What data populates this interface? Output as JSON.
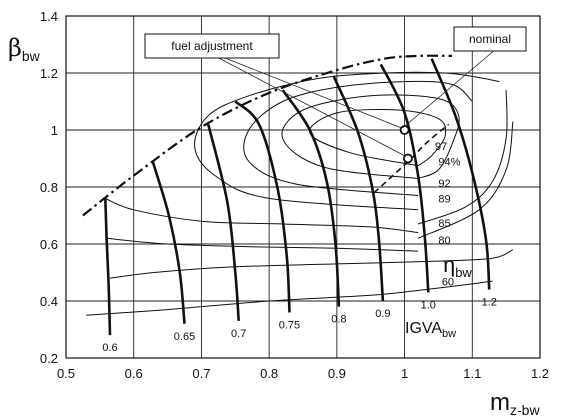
{
  "chart_data": {
    "type": "line",
    "axes": {
      "x_label": {
        "main": "m",
        "sub": "z-bw"
      },
      "y_label": {
        "main": "β",
        "sub": "bw"
      },
      "xlim": [
        0.5,
        1.2
      ],
      "ylim": [
        0.2,
        1.4
      ],
      "x_ticks": [
        "0.5",
        "0.6",
        "0.7",
        "0.8",
        "0.9",
        "1",
        "1.1",
        "1.2"
      ],
      "y_ticks": [
        "0.2",
        "0.4",
        "0.6",
        "0.8",
        "1",
        "1.2",
        "1.4"
      ],
      "grid": true
    },
    "igva_lines": {
      "name": {
        "main": "IGVA",
        "sub": "bw"
      },
      "lines": [
        {
          "label": "0.6",
          "points": [
            [
              0.565,
              0.28
            ],
            [
              0.563,
              0.45
            ],
            [
              0.56,
              0.62
            ],
            [
              0.558,
              0.76
            ]
          ]
        },
        {
          "label": "0.65",
          "points": [
            [
              0.675,
              0.32
            ],
            [
              0.668,
              0.5
            ],
            [
              0.652,
              0.7
            ],
            [
              0.628,
              0.89
            ]
          ]
        },
        {
          "label": "0.7",
          "points": [
            [
              0.755,
              0.33
            ],
            [
              0.75,
              0.5
            ],
            [
              0.738,
              0.75
            ],
            [
              0.71,
              1.02
            ]
          ]
        },
        {
          "label": "0.75",
          "points": [
            [
              0.83,
              0.36
            ],
            [
              0.826,
              0.56
            ],
            [
              0.812,
              0.8
            ],
            [
              0.785,
              1.02
            ],
            [
              0.75,
              1.1
            ]
          ]
        },
        {
          "label": "0.8",
          "points": [
            [
              0.903,
              0.38
            ],
            [
              0.898,
              0.6
            ],
            [
              0.885,
              0.82
            ],
            [
              0.86,
              1.0
            ],
            [
              0.82,
              1.14
            ]
          ]
        },
        {
          "label": "0.9",
          "points": [
            [
              0.968,
              0.4
            ],
            [
              0.962,
              0.62
            ],
            [
              0.952,
              0.8
            ],
            [
              0.93,
              1.0
            ],
            [
              0.895,
              1.19
            ]
          ]
        },
        {
          "label": "1.0",
          "points": [
            [
              1.035,
              0.43
            ],
            [
              1.03,
              0.62
            ],
            [
              1.02,
              0.84
            ],
            [
              1.0,
              1.06
            ],
            [
              0.965,
              1.23
            ]
          ]
        },
        {
          "label": "1.2",
          "points": [
            [
              1.125,
              0.44
            ],
            [
              1.12,
              0.62
            ],
            [
              1.1,
              0.85
            ],
            [
              1.075,
              1.05
            ],
            [
              1.04,
              1.25
            ]
          ]
        }
      ]
    },
    "efficiency_contours": {
      "name": {
        "main": "η",
        "sub": "bw"
      },
      "contours": [
        {
          "label": "97",
          "label_pos": [
            1.045,
            0.93
          ],
          "points": [
            [
              1.02,
              0.875
            ],
            [
              0.92,
              0.92
            ],
            [
              0.86,
              0.99
            ],
            [
              0.9,
              1.06
            ],
            [
              0.99,
              1.07
            ],
            [
              1.05,
              1.04
            ],
            [
              1.06,
              0.98
            ],
            [
              1.04,
              0.91
            ],
            [
              1.02,
              0.875
            ]
          ]
        },
        {
          "label": "94%",
          "label_pos": [
            1.05,
            0.875
          ],
          "points": [
            [
              1.02,
              0.83
            ],
            [
              0.88,
              0.87
            ],
            [
              0.82,
              0.97
            ],
            [
              0.85,
              1.07
            ],
            [
              0.95,
              1.12
            ],
            [
              1.05,
              1.11
            ],
            [
              1.08,
              1.05
            ],
            [
              1.07,
              0.95
            ],
            [
              1.05,
              0.86
            ],
            [
              1.02,
              0.83
            ]
          ]
        },
        {
          "label": "92",
          "label_pos": [
            1.05,
            0.8
          ],
          "points": [
            [
              1.02,
              0.77
            ],
            [
              0.84,
              0.81
            ],
            [
              0.77,
              0.89
            ],
            [
              0.77,
              1.0
            ],
            [
              0.82,
              1.1
            ],
            [
              0.9,
              1.15
            ],
            [
              1.0,
              1.17
            ],
            [
              1.07,
              1.16
            ],
            [
              1.1,
              1.1
            ]
          ]
        },
        {
          "label": "89",
          "label_pos": [
            1.05,
            0.745
          ],
          "points": [
            [
              1.02,
              0.72
            ],
            [
              0.8,
              0.76
            ],
            [
              0.72,
              0.84
            ],
            [
              0.69,
              0.94
            ],
            [
              0.71,
              1.05
            ],
            [
              0.77,
              1.12
            ],
            [
              0.87,
              1.18
            ],
            [
              0.97,
              1.2
            ],
            [
              1.06,
              1.2
            ],
            [
              1.12,
              1.18
            ]
          ]
        },
        {
          "label": "85",
          "label_pos": [
            1.05,
            0.66
          ],
          "points": [
            [
              0.558,
              0.76
            ],
            [
              0.6,
              0.72
            ],
            [
              0.7,
              0.68
            ],
            [
              0.82,
              0.67
            ],
            [
              0.95,
              0.66
            ],
            [
              1.02,
              0.64
            ]
          ]
        },
        {
          "label": "80",
          "label_pos": [
            1.05,
            0.6
          ],
          "points": [
            [
              0.56,
              0.62
            ],
            [
              0.65,
              0.6
            ],
            [
              0.78,
              0.59
            ],
            [
              0.9,
              0.585
            ],
            [
              1.02,
              0.575
            ]
          ]
        },
        {
          "label": "60",
          "label_pos": [
            1.055,
            0.455
          ],
          "points": [
            [
              0.53,
              0.35
            ],
            [
              0.65,
              0.37
            ],
            [
              0.8,
              0.4
            ],
            [
              0.95,
              0.42
            ],
            [
              1.03,
              0.44
            ],
            [
              1.1,
              0.46
            ],
            [
              1.13,
              0.47
            ]
          ]
        }
      ],
      "open_contours": [
        {
          "points": [
            [
              0.565,
              0.48
            ],
            [
              0.63,
              0.5
            ],
            [
              0.75,
              0.52
            ],
            [
              0.9,
              0.53
            ],
            [
              1.05,
              0.54
            ],
            [
              1.13,
              0.55
            ],
            [
              1.16,
              0.58
            ]
          ]
        },
        {
          "points": [
            [
              1.02,
              0.67
            ],
            [
              1.09,
              0.73
            ],
            [
              1.13,
              0.82
            ],
            [
              1.15,
              0.97
            ],
            [
              1.15,
              1.14
            ]
          ]
        },
        {
          "points": [
            [
              1.02,
              0.62
            ],
            [
              1.11,
              0.72
            ],
            [
              1.15,
              0.86
            ],
            [
              1.16,
              1.03
            ]
          ]
        },
        {
          "points": [
            [
              1.12,
              1.18
            ],
            [
              1.14,
              1.17
            ]
          ]
        }
      ]
    },
    "surge_line": {
      "points": [
        [
          0.525,
          0.7
        ],
        [
          0.6,
          0.84
        ],
        [
          0.7,
          1.01
        ],
        [
          0.8,
          1.13
        ],
        [
          0.9,
          1.21
        ],
        [
          0.97,
          1.25
        ],
        [
          1.02,
          1.26
        ],
        [
          1.07,
          1.26
        ]
      ]
    },
    "operating_line": {
      "points": [
        [
          0.955,
          0.78
        ],
        [
          1.01,
          0.9
        ],
        [
          1.03,
          0.95
        ],
        [
          1.065,
          1.02
        ]
      ]
    },
    "points": [
      {
        "name": "nominal",
        "x": 1.0,
        "y": 1.0
      },
      {
        "name": "fuel adjustment",
        "x": 1.005,
        "y": 0.9
      }
    ],
    "annotations": {
      "nominal": "nominal",
      "fuel_adjustment": "fuel adjustment"
    }
  }
}
